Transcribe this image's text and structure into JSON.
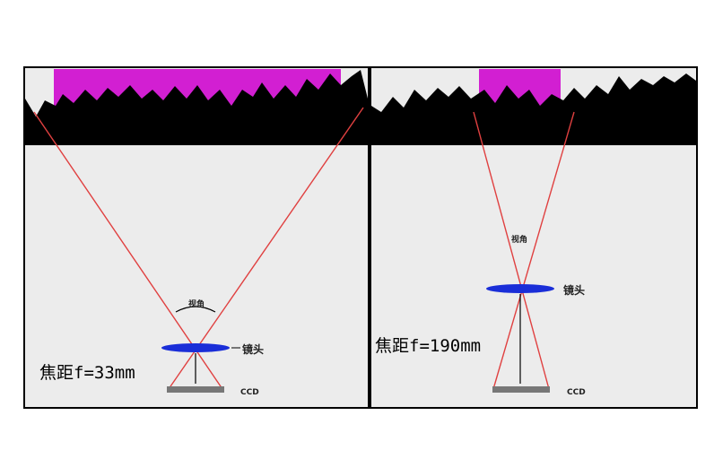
{
  "panels": [
    {
      "view_angle_label": "视角",
      "lens_label": "镜头",
      "sensor_label": "CCD",
      "focal_label": "焦距f=33mm"
    },
    {
      "view_angle_label": "视角",
      "lens_label": "镜头",
      "sensor_label": "CCD",
      "focal_label": "焦距f=190mm"
    }
  ]
}
